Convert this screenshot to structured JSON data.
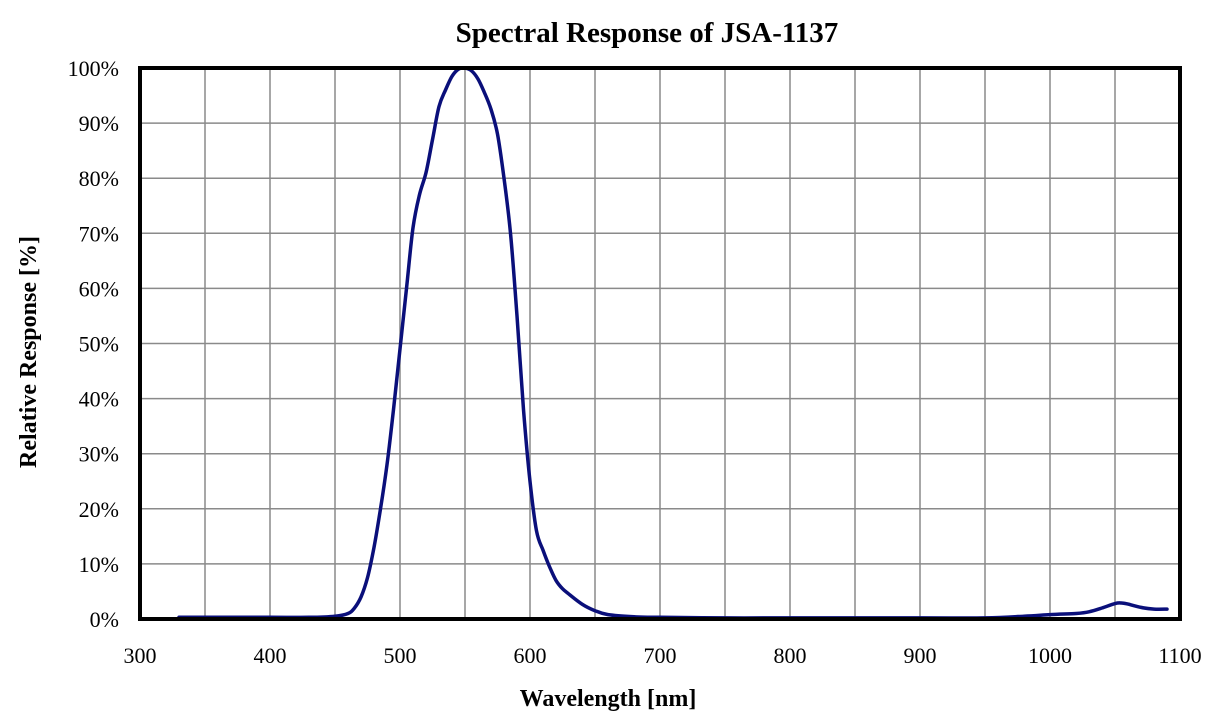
{
  "chart_data": {
    "type": "line",
    "title": "Spectral Response of JSA-1137",
    "xlabel": "Wavelength [nm]",
    "ylabel": "Relative Response  [%]",
    "xlim": [
      300,
      1100
    ],
    "ylim": [
      0,
      100
    ],
    "x_major_ticks": [
      "300",
      "400",
      "500",
      "600",
      "700",
      "800",
      "900",
      "1000",
      "1100"
    ],
    "x_minor_step": 50,
    "y_ticks": [
      "0%",
      "10%",
      "20%",
      "30%",
      "40%",
      "50%",
      "60%",
      "70%",
      "80%",
      "90%",
      "100%"
    ],
    "grid": true,
    "line_color": "#0a0f7a",
    "series": [
      {
        "x": [
          330,
          350,
          400,
          430,
          450,
          460,
          465,
          470,
          475,
          480,
          485,
          490,
          495,
          500,
          505,
          510,
          515,
          520,
          525,
          530,
          535,
          540,
          545,
          550,
          555,
          560,
          565,
          570,
          575,
          580,
          585,
          590,
          595,
          600,
          605,
          610,
          615,
          620,
          625,
          630,
          640,
          650,
          660,
          680,
          700,
          750,
          800,
          900,
          950,
          980,
          1000,
          1020,
          1030,
          1040,
          1050,
          1055,
          1060,
          1070,
          1080,
          1090
        ],
        "y": [
          0.3,
          0.3,
          0.3,
          0.3,
          0.5,
          1.0,
          2.0,
          4.0,
          7.5,
          13,
          20,
          28,
          38,
          49,
          60,
          71,
          77,
          81,
          87,
          93,
          96,
          98.5,
          99.8,
          100,
          99.5,
          98,
          95.5,
          92.5,
          88,
          80,
          70,
          55,
          38,
          25,
          16,
          12.5,
          9.5,
          7,
          5.5,
          4.5,
          2.7,
          1.5,
          0.8,
          0.4,
          0.3,
          0.2,
          0.2,
          0.2,
          0.2,
          0.5,
          0.8,
          1.0,
          1.3,
          2.0,
          2.8,
          2.9,
          2.7,
          2.1,
          1.8,
          1.8
        ]
      }
    ]
  }
}
